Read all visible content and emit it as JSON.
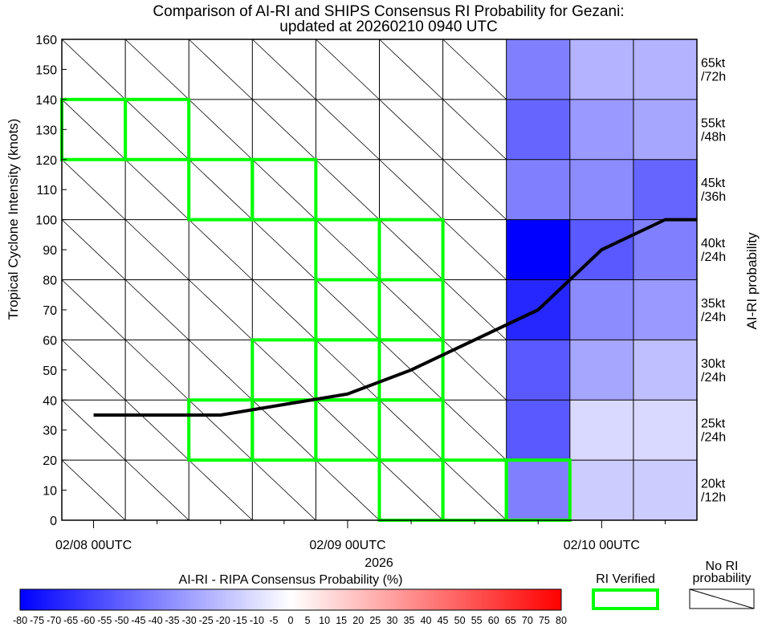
{
  "colors": {
    "verified": "#00ff00",
    "track": "#000000",
    "grid": "#000000",
    "noprob_fill": "#ffffff"
  },
  "chart_data": {
    "type": "heatmap",
    "title_line1": "Comparison of AI-RI and SHIPS Consensus RI Probability for Gezani:",
    "title_line2": "updated at 20260210 0940 UTC",
    "ylabel": "Tropical Cyclone Intensity (knots)",
    "right_label": "AI-RI probability",
    "xlabel": "2026",
    "x_ticks": [
      "02/08 00UTC",
      "02/09 00UTC",
      "02/10 00UTC"
    ],
    "x_tick_hours": [
      0,
      24,
      48
    ],
    "x_range_hours": [
      -3,
      57
    ],
    "column_hours": [
      -3,
      3,
      9,
      15,
      21,
      27,
      33,
      39,
      45,
      51,
      57
    ],
    "y_ticks": [
      0,
      10,
      20,
      30,
      40,
      50,
      60,
      70,
      80,
      90,
      100,
      110,
      120,
      130,
      140,
      150,
      160
    ],
    "ylim": [
      0,
      160
    ],
    "row_bounds": [
      0,
      20,
      40,
      60,
      80,
      100,
      120,
      140,
      160
    ],
    "row_labels": [
      {
        "top": "20kt",
        "bottom": "/12h"
      },
      {
        "top": "25kt",
        "bottom": "/24h"
      },
      {
        "top": "30kt",
        "bottom": "/24h"
      },
      {
        "top": "35kt",
        "bottom": "/24h"
      },
      {
        "top": "40kt",
        "bottom": "/24h"
      },
      {
        "top": "45kt",
        "bottom": "/36h"
      },
      {
        "top": "55kt",
        "bottom": "/48h"
      },
      {
        "top": "65kt",
        "bottom": "/72h"
      }
    ],
    "cells": [
      {
        "col": 7,
        "row": 0,
        "value": -50
      },
      {
        "col": 8,
        "row": 0,
        "value": -20
      },
      {
        "col": 9,
        "row": 0,
        "value": -20
      },
      {
        "col": 7,
        "row": 1,
        "value": -65
      },
      {
        "col": 8,
        "row": 1,
        "value": -15
      },
      {
        "col": 9,
        "row": 1,
        "value": -15
      },
      {
        "col": 7,
        "row": 2,
        "value": -65
      },
      {
        "col": 8,
        "row": 2,
        "value": -35
      },
      {
        "col": 9,
        "row": 2,
        "value": -25
      },
      {
        "col": 7,
        "row": 3,
        "value": -85
      },
      {
        "col": 8,
        "row": 3,
        "value": -45
      },
      {
        "col": 9,
        "row": 3,
        "value": -40
      },
      {
        "col": 7,
        "row": 4,
        "value": -100
      },
      {
        "col": 8,
        "row": 4,
        "value": -65
      },
      {
        "col": 9,
        "row": 4,
        "value": -50
      },
      {
        "col": 7,
        "row": 5,
        "value": -50
      },
      {
        "col": 8,
        "row": 5,
        "value": -45
      },
      {
        "col": 9,
        "row": 5,
        "value": -60
      },
      {
        "col": 7,
        "row": 6,
        "value": -60
      },
      {
        "col": 8,
        "row": 6,
        "value": -40
      },
      {
        "col": 9,
        "row": 6,
        "value": -35
      },
      {
        "col": 7,
        "row": 7,
        "value": -50
      },
      {
        "col": 8,
        "row": 7,
        "value": -30
      },
      {
        "col": 9,
        "row": 7,
        "value": -30
      }
    ],
    "verified_cells": [
      {
        "col": 0,
        "row": 6
      },
      {
        "col": 1,
        "row": 6
      },
      {
        "col": 2,
        "row": 5
      },
      {
        "col": 3,
        "row": 5
      },
      {
        "col": 4,
        "row": 4
      },
      {
        "col": 5,
        "row": 4
      },
      {
        "col": 4,
        "row": 3
      },
      {
        "col": 5,
        "row": 3
      },
      {
        "col": 3,
        "row": 2
      },
      {
        "col": 4,
        "row": 2
      },
      {
        "col": 5,
        "row": 2
      },
      {
        "col": 2,
        "row": 1
      },
      {
        "col": 3,
        "row": 1
      },
      {
        "col": 4,
        "row": 1
      },
      {
        "col": 5,
        "row": 1
      },
      {
        "col": 5,
        "row": 0
      },
      {
        "col": 6,
        "row": 0
      },
      {
        "col": 7,
        "row": 0
      }
    ],
    "track": {
      "hours": [
        0,
        12,
        24,
        30,
        42,
        48,
        54,
        57
      ],
      "values": [
        35,
        35,
        42,
        50,
        70,
        90,
        100,
        100
      ]
    },
    "colorbar": {
      "title": "AI-RI - RIPA Consensus Probability (%)",
      "ticks": [
        "-80",
        "-75",
        "-70",
        "-65",
        "-60",
        "-55",
        "-50",
        "-45",
        "-40",
        "-35",
        "-30",
        "-25",
        "-20",
        "-15",
        "-10",
        "-5",
        "0",
        "5",
        "10",
        "15",
        "20",
        "25",
        "30",
        "35",
        "40",
        "45",
        "50",
        "55",
        "60",
        "65",
        "70",
        "75",
        "80"
      ],
      "min": -80,
      "max": 80
    },
    "legend": {
      "verified_label": "RI Verified",
      "noprob_line1": "No RI",
      "noprob_line2": "probability"
    }
  }
}
